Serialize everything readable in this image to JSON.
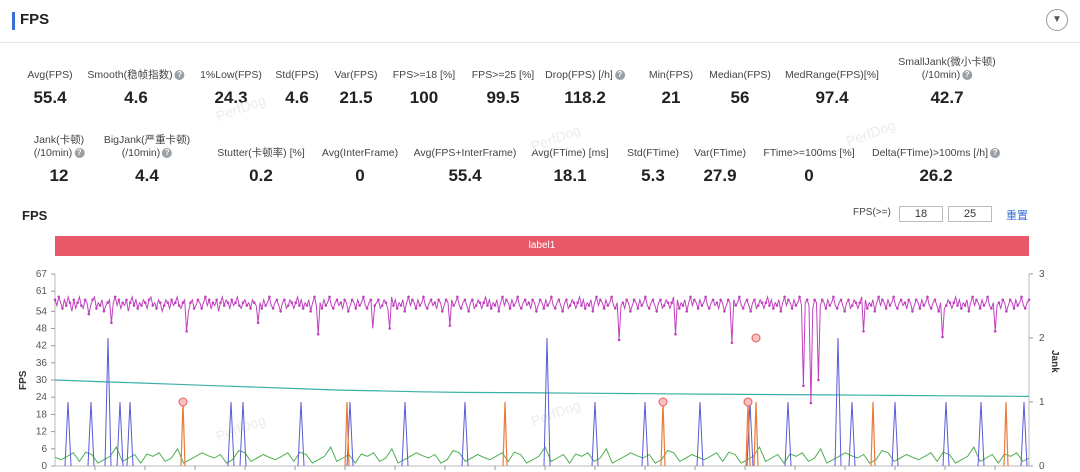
{
  "header": {
    "title": "FPS",
    "collapse_icon": "▼"
  },
  "metrics_row1": [
    {
      "label": "Avg(FPS)",
      "value": "55.4",
      "help": false
    },
    {
      "label": "Smooth(稳帧指数)",
      "value": "4.6",
      "help": true
    },
    {
      "label": "1%Low(FPS)",
      "value": "24.3",
      "help": false
    },
    {
      "label": "Std(FPS)",
      "value": "4.6",
      "help": false
    },
    {
      "label": "Var(FPS)",
      "value": "21.5",
      "help": false
    },
    {
      "label": "FPS>=18 [%]",
      "value": "100",
      "help": false
    },
    {
      "label": "FPS>=25 [%]",
      "value": "99.5",
      "help": false
    },
    {
      "label": "Drop(FPS) [/h]",
      "value": "118.2",
      "help": true
    },
    {
      "label": "Min(FPS)",
      "value": "21",
      "help": false
    },
    {
      "label": "Median(FPS)",
      "value": "56",
      "help": false
    },
    {
      "label": "MedRange(FPS)[%]",
      "value": "97.4",
      "help": false
    },
    {
      "label": "SmallJank(微小卡顿)",
      "label2": "(/10min)",
      "value": "42.7",
      "help": true
    }
  ],
  "metrics_row2": [
    {
      "label": "Jank(卡顿)",
      "label2": "(/10min)",
      "value": "12",
      "help": true
    },
    {
      "label": "BigJank(严重卡顿)",
      "label2": "(/10min)",
      "value": "4.4",
      "help": true
    },
    {
      "label": "Stutter(卡顿率) [%]",
      "value": "0.2",
      "help": false
    },
    {
      "label": "Avg(InterFrame)",
      "value": "0",
      "help": false
    },
    {
      "label": "Avg(FPS+InterFrame)",
      "value": "55.4",
      "help": false
    },
    {
      "label": "Avg(FTime) [ms]",
      "value": "18.1",
      "help": false
    },
    {
      "label": "Std(FTime)",
      "value": "5.3",
      "help": false
    },
    {
      "label": "Var(FTime)",
      "value": "27.9",
      "help": false
    },
    {
      "label": "FTime>=100ms [%]",
      "value": "0",
      "help": false
    },
    {
      "label": "Delta(FTime)>100ms [/h]",
      "value": "26.2",
      "help": true
    }
  ],
  "chart_section": {
    "title": "FPS",
    "filter_label": "FPS(>=)",
    "filter_value1": "18",
    "filter_value2": "25",
    "reset_label": "重置",
    "label_bar": "label1",
    "watermark": "PerfDog"
  },
  "chart_data": {
    "type": "line",
    "ylabel": "FPS",
    "y2label": "Jank",
    "y_ticks": [
      "67",
      "61",
      "54",
      "48",
      "42",
      "36",
      "30",
      "24",
      "18",
      "12",
      "6",
      "0"
    ],
    "y2_ticks": [
      "3",
      "2",
      "1",
      "0"
    ],
    "ylim": [
      0,
      67
    ],
    "y2lim": [
      0,
      3
    ],
    "colors": {
      "fps": "#c040c0",
      "ftime": "#3bb0a8",
      "jank": "#5a5ad8",
      "bigjank": "#e87a3a",
      "interframe": "#4caf50",
      "marker": "#e85a5a"
    },
    "series": [
      {
        "key": "fps",
        "values": [
          58,
          56,
          59,
          57,
          55,
          58,
          56,
          59,
          57,
          54,
          58,
          55,
          57,
          59,
          56,
          55,
          58,
          57,
          53,
          56,
          58,
          59,
          55,
          57,
          56,
          58,
          54,
          56,
          57,
          58,
          55,
          57,
          59,
          56,
          58,
          55,
          57,
          56,
          58,
          54,
          57,
          59,
          56,
          58,
          55,
          57,
          56,
          58,
          57,
          55,
          58,
          59,
          56,
          57,
          55,
          58,
          57,
          54,
          56,
          58,
          57,
          55,
          58,
          56,
          57,
          59,
          56,
          55,
          57,
          58,
          56,
          54,
          57,
          58,
          55,
          56,
          58,
          57,
          55,
          57,
          59,
          56,
          58,
          55,
          57,
          56,
          58,
          54,
          57,
          59,
          56,
          58,
          57,
          55,
          58,
          56,
          57,
          59,
          56,
          55,
          57,
          58,
          56,
          57,
          55,
          58,
          57,
          56,
          50,
          57,
          55,
          58,
          56,
          57,
          59,
          56,
          55,
          57,
          58,
          56,
          54,
          57,
          58,
          55,
          56,
          58,
          57,
          55,
          57,
          59,
          56,
          58,
          55,
          57,
          56,
          58,
          54,
          57,
          59,
          56,
          58,
          57,
          55,
          58,
          56,
          57,
          59,
          56,
          55,
          57,
          58,
          56,
          57,
          55,
          58,
          57,
          54,
          56,
          58,
          57,
          55,
          58,
          56,
          57,
          59,
          56,
          55,
          57,
          58,
          48,
          56,
          57,
          58,
          55,
          56,
          58,
          57,
          55,
          57,
          59,
          56,
          58,
          55,
          57,
          56,
          58,
          54,
          57,
          59,
          56,
          58,
          57,
          55,
          58,
          56,
          57,
          59,
          56,
          55,
          57,
          58,
          56,
          57,
          55,
          58,
          57,
          54,
          56,
          58,
          57,
          55,
          58,
          56,
          57,
          59,
          56,
          55,
          57,
          58,
          56,
          54,
          57,
          58,
          55,
          56,
          58,
          57,
          55,
          57,
          59,
          56,
          58,
          55,
          57,
          56,
          58,
          54,
          57,
          59,
          56,
          58,
          57,
          55,
          58,
          56,
          57,
          59,
          56,
          55,
          57,
          58,
          56,
          57,
          55,
          58,
          57,
          54,
          56,
          58,
          57,
          55,
          58,
          56,
          57,
          59,
          56,
          55,
          57,
          58,
          56,
          54,
          57,
          58,
          55,
          56,
          58,
          57,
          55,
          57,
          59,
          56,
          58,
          55,
          57,
          56,
          58,
          54,
          57,
          59,
          56,
          58,
          57,
          55,
          58,
          56,
          57,
          59,
          56,
          55,
          57,
          58,
          56,
          57,
          55,
          58,
          57,
          54,
          56,
          58,
          57,
          55,
          58,
          56,
          57,
          59,
          56,
          55,
          57,
          58,
          56,
          54,
          57,
          58,
          55,
          56,
          58,
          57,
          55,
          57,
          59,
          56,
          58,
          55,
          57,
          56,
          58,
          54,
          57,
          59,
          56,
          58,
          57,
          55,
          58,
          56,
          57,
          59,
          56,
          55,
          57,
          58,
          56,
          57,
          55,
          58,
          57,
          54,
          56,
          58,
          57,
          55,
          58,
          56,
          57,
          59,
          56,
          55,
          57,
          58,
          56,
          54,
          57,
          58,
          55,
          56,
          58,
          57,
          55,
          57,
          59,
          56,
          58,
          55,
          57,
          56,
          58,
          54,
          57,
          59,
          56,
          58,
          57,
          55,
          58,
          56,
          57,
          59,
          56,
          55,
          57,
          58,
          56,
          57,
          55,
          58,
          57,
          54,
          56,
          58,
          57,
          55,
          58,
          56,
          57,
          59,
          56,
          55,
          57,
          58,
          56,
          54,
          57,
          58,
          55,
          56,
          58,
          57,
          55,
          57,
          59,
          56,
          58,
          55,
          57,
          56,
          58,
          54,
          57,
          59,
          56,
          58,
          57,
          55,
          58,
          56,
          57,
          59,
          56,
          55,
          57,
          58,
          56,
          57,
          55,
          58,
          57,
          54,
          56,
          58,
          57,
          55,
          58,
          56,
          57,
          59,
          56,
          55,
          57,
          58,
          56,
          54,
          57,
          58,
          55,
          56,
          58,
          57,
          55,
          57,
          59,
          56,
          58,
          55,
          57,
          56,
          58,
          54,
          57,
          59,
          56,
          58,
          57,
          55,
          58,
          56,
          57,
          59,
          56,
          55,
          57,
          58,
          56,
          57,
          55,
          58,
          57,
          54,
          56,
          58,
          57,
          55,
          58,
          56,
          57,
          59,
          56,
          55,
          57,
          58
        ]
      },
      {
        "key": "ftime",
        "values": [
          30,
          29.5,
          29,
          28.5,
          28,
          27.5,
          27,
          26.5,
          26.2,
          25.9,
          25.7,
          25.6,
          25.5,
          25.4,
          25.3,
          25.2,
          25.1,
          25,
          24.9,
          24.8,
          24.7,
          24.6,
          24.5,
          24.4,
          24.3
        ]
      }
    ]
  }
}
